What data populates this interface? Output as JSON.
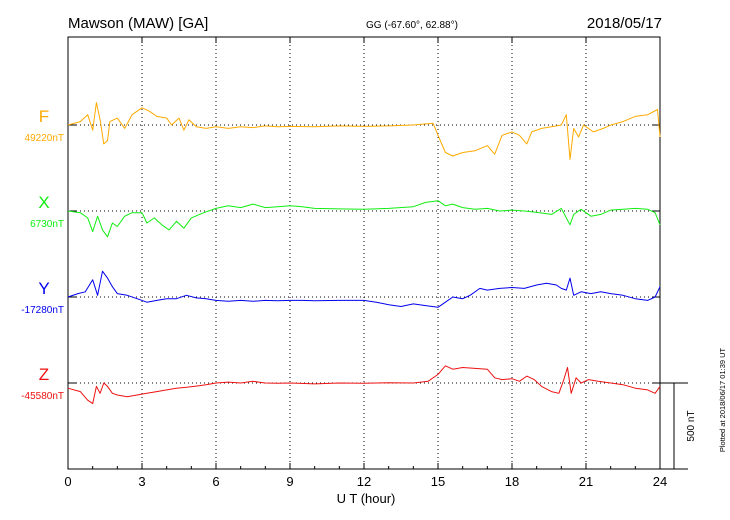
{
  "header": {
    "station": "Mawson (MAW)  [GA]",
    "coords": "GG (-67.60°,  62.88°)",
    "date": "2018/05/17"
  },
  "footer_note": "Plotted at 2018/06/17 01:39 UT",
  "scale_bar_label": "500 nT",
  "chart_data": {
    "type": "line",
    "xlabel": "U T (hour)",
    "xlim": [
      0,
      24
    ],
    "xticks": [
      0,
      3,
      6,
      9,
      12,
      15,
      18,
      21,
      24
    ],
    "grid": true,
    "scale_bar_nT": 500,
    "series": [
      {
        "name": "F",
        "color": "#ffaa00",
        "baseline_label": "49220nT",
        "baseline_nT": 49220,
        "points": [
          [
            0,
            49220
          ],
          [
            0.5,
            49240
          ],
          [
            0.8,
            49280
          ],
          [
            1.0,
            49190
          ],
          [
            1.15,
            49350
          ],
          [
            1.3,
            49250
          ],
          [
            1.45,
            49110
          ],
          [
            1.6,
            49130
          ],
          [
            1.7,
            49240
          ],
          [
            2.0,
            49260
          ],
          [
            2.3,
            49200
          ],
          [
            2.6,
            49280
          ],
          [
            3.0,
            49320
          ],
          [
            3.3,
            49300
          ],
          [
            3.6,
            49270
          ],
          [
            4.0,
            49260
          ],
          [
            4.2,
            49220
          ],
          [
            4.5,
            49260
          ],
          [
            4.7,
            49190
          ],
          [
            4.9,
            49250
          ],
          [
            5.2,
            49210
          ],
          [
            5.6,
            49200
          ],
          [
            6.0,
            49210
          ],
          [
            6.5,
            49200
          ],
          [
            7.0,
            49210
          ],
          [
            7.5,
            49205
          ],
          [
            8.0,
            49215
          ],
          [
            8.5,
            49210
          ],
          [
            9.0,
            49212
          ],
          [
            10,
            49210
          ],
          [
            11,
            49215
          ],
          [
            12,
            49212
          ],
          [
            13,
            49215
          ],
          [
            14,
            49220
          ],
          [
            14.8,
            49230
          ],
          [
            15.0,
            49160
          ],
          [
            15.3,
            49060
          ],
          [
            15.6,
            49040
          ],
          [
            16.0,
            49060
          ],
          [
            16.5,
            49070
          ],
          [
            17.0,
            49100
          ],
          [
            17.3,
            49050
          ],
          [
            17.6,
            49160
          ],
          [
            18.0,
            49180
          ],
          [
            18.3,
            49160
          ],
          [
            18.6,
            49110
          ],
          [
            18.8,
            49180
          ],
          [
            19.2,
            49200
          ],
          [
            19.6,
            49210
          ],
          [
            20.0,
            49220
          ],
          [
            20.2,
            49280
          ],
          [
            20.35,
            49020
          ],
          [
            20.5,
            49200
          ],
          [
            20.7,
            49150
          ],
          [
            20.9,
            49220
          ],
          [
            21.3,
            49180
          ],
          [
            21.7,
            49200
          ],
          [
            22.0,
            49220
          ],
          [
            22.5,
            49240
          ],
          [
            23.0,
            49270
          ],
          [
            23.5,
            49280
          ],
          [
            23.9,
            49310
          ],
          [
            24.0,
            49150
          ]
        ]
      },
      {
        "name": "X",
        "color": "#11ee11",
        "baseline_label": "6730nT",
        "baseline_nT": 6730,
        "points": [
          [
            0,
            6730
          ],
          [
            0.5,
            6720
          ],
          [
            0.8,
            6690
          ],
          [
            1.0,
            6610
          ],
          [
            1.2,
            6700
          ],
          [
            1.4,
            6620
          ],
          [
            1.6,
            6580
          ],
          [
            1.8,
            6660
          ],
          [
            2.0,
            6640
          ],
          [
            2.3,
            6700
          ],
          [
            2.6,
            6720
          ],
          [
            3.0,
            6720
          ],
          [
            3.2,
            6660
          ],
          [
            3.5,
            6690
          ],
          [
            3.8,
            6650
          ],
          [
            4.1,
            6620
          ],
          [
            4.4,
            6670
          ],
          [
            4.7,
            6630
          ],
          [
            5.0,
            6690
          ],
          [
            5.5,
            6720
          ],
          [
            6.0,
            6745
          ],
          [
            6.5,
            6760
          ],
          [
            7.0,
            6750
          ],
          [
            7.5,
            6770
          ],
          [
            8.0,
            6750
          ],
          [
            8.5,
            6755
          ],
          [
            9.0,
            6760
          ],
          [
            9.5,
            6755
          ],
          [
            10,
            6745
          ],
          [
            11,
            6742
          ],
          [
            12,
            6740
          ],
          [
            13,
            6745
          ],
          [
            14,
            6755
          ],
          [
            14.5,
            6780
          ],
          [
            15.0,
            6790
          ],
          [
            15.3,
            6760
          ],
          [
            15.6,
            6770
          ],
          [
            16.0,
            6750
          ],
          [
            16.5,
            6740
          ],
          [
            17.0,
            6745
          ],
          [
            17.5,
            6730
          ],
          [
            18,
            6735
          ],
          [
            18.5,
            6730
          ],
          [
            19.0,
            6722
          ],
          [
            19.6,
            6710
          ],
          [
            20.0,
            6745
          ],
          [
            20.2,
            6690
          ],
          [
            20.35,
            6650
          ],
          [
            20.5,
            6710
          ],
          [
            20.8,
            6740
          ],
          [
            21.2,
            6700
          ],
          [
            21.6,
            6710
          ],
          [
            22.0,
            6735
          ],
          [
            22.5,
            6740
          ],
          [
            23.0,
            6745
          ],
          [
            23.5,
            6740
          ],
          [
            23.8,
            6720
          ],
          [
            24.0,
            6650
          ]
        ]
      },
      {
        "name": "Y",
        "color": "#0000ee",
        "baseline_label": "-17280nT",
        "baseline_nT": -17280,
        "points": [
          [
            0,
            -17280
          ],
          [
            0.4,
            -17260
          ],
          [
            0.7,
            -17250
          ],
          [
            1.0,
            -17180
          ],
          [
            1.2,
            -17270
          ],
          [
            1.4,
            -17130
          ],
          [
            1.6,
            -17170
          ],
          [
            1.8,
            -17220
          ],
          [
            2.0,
            -17260
          ],
          [
            2.4,
            -17270
          ],
          [
            2.8,
            -17290
          ],
          [
            3.2,
            -17310
          ],
          [
            3.6,
            -17300
          ],
          [
            4.0,
            -17290
          ],
          [
            4.4,
            -17290
          ],
          [
            4.8,
            -17270
          ],
          [
            5.2,
            -17285
          ],
          [
            5.6,
            -17290
          ],
          [
            6.0,
            -17300
          ],
          [
            6.5,
            -17305
          ],
          [
            7.0,
            -17300
          ],
          [
            7.5,
            -17305
          ],
          [
            8.0,
            -17300
          ],
          [
            8.5,
            -17302
          ],
          [
            9.0,
            -17300
          ],
          [
            9.5,
            -17300
          ],
          [
            10,
            -17302
          ],
          [
            11,
            -17300
          ],
          [
            11.5,
            -17300
          ],
          [
            12,
            -17300
          ],
          [
            12.5,
            -17310
          ],
          [
            13,
            -17325
          ],
          [
            13.5,
            -17335
          ],
          [
            14,
            -17320
          ],
          [
            14.5,
            -17330
          ],
          [
            15.0,
            -17340
          ],
          [
            15.3,
            -17310
          ],
          [
            15.6,
            -17280
          ],
          [
            16.0,
            -17290
          ],
          [
            16.3,
            -17270
          ],
          [
            16.7,
            -17230
          ],
          [
            17.0,
            -17240
          ],
          [
            17.5,
            -17230
          ],
          [
            18,
            -17225
          ],
          [
            18.5,
            -17230
          ],
          [
            19.0,
            -17210
          ],
          [
            19.4,
            -17200
          ],
          [
            19.8,
            -17210
          ],
          [
            20.0,
            -17230
          ],
          [
            20.2,
            -17240
          ],
          [
            20.35,
            -17170
          ],
          [
            20.5,
            -17270
          ],
          [
            20.8,
            -17250
          ],
          [
            21.2,
            -17260
          ],
          [
            21.6,
            -17250
          ],
          [
            22.0,
            -17260
          ],
          [
            22.5,
            -17270
          ],
          [
            23.0,
            -17290
          ],
          [
            23.5,
            -17300
          ],
          [
            23.8,
            -17280
          ],
          [
            24.0,
            -17220
          ]
        ]
      },
      {
        "name": "Z",
        "color": "#ee1111",
        "baseline_label": "-45580nT",
        "baseline_nT": -45580,
        "points": [
          [
            0,
            -45610
          ],
          [
            0.5,
            -45630
          ],
          [
            0.8,
            -45680
          ],
          [
            1.0,
            -45700
          ],
          [
            1.15,
            -45600
          ],
          [
            1.3,
            -45640
          ],
          [
            1.45,
            -45580
          ],
          [
            1.6,
            -45600
          ],
          [
            1.8,
            -45640
          ],
          [
            2.0,
            -45650
          ],
          [
            2.4,
            -45660
          ],
          [
            2.8,
            -45650
          ],
          [
            3.2,
            -45640
          ],
          [
            3.6,
            -45630
          ],
          [
            4.0,
            -45620
          ],
          [
            4.4,
            -45610
          ],
          [
            4.8,
            -45605
          ],
          [
            5.2,
            -45598
          ],
          [
            5.6,
            -45590
          ],
          [
            6.0,
            -45580
          ],
          [
            6.5,
            -45575
          ],
          [
            7.0,
            -45580
          ],
          [
            7.5,
            -45570
          ],
          [
            8.0,
            -45580
          ],
          [
            8.5,
            -45582
          ],
          [
            9.0,
            -45580
          ],
          [
            10,
            -45585
          ],
          [
            11,
            -45580
          ],
          [
            12,
            -45582
          ],
          [
            13,
            -45578
          ],
          [
            14,
            -45580
          ],
          [
            14.6,
            -45570
          ],
          [
            15.0,
            -45530
          ],
          [
            15.3,
            -45480
          ],
          [
            15.6,
            -45500
          ],
          [
            16.0,
            -45490
          ],
          [
            16.5,
            -45495
          ],
          [
            17.0,
            -45500
          ],
          [
            17.3,
            -45550
          ],
          [
            17.6,
            -45560
          ],
          [
            18.0,
            -45555
          ],
          [
            18.3,
            -45570
          ],
          [
            18.6,
            -45540
          ],
          [
            18.9,
            -45560
          ],
          [
            19.2,
            -45600
          ],
          [
            19.6,
            -45630
          ],
          [
            19.9,
            -45640
          ],
          [
            20.1,
            -45560
          ],
          [
            20.25,
            -45490
          ],
          [
            20.4,
            -45640
          ],
          [
            20.6,
            -45550
          ],
          [
            20.8,
            -45580
          ],
          [
            21.1,
            -45560
          ],
          [
            21.5,
            -45570
          ],
          [
            22.0,
            -45580
          ],
          [
            22.5,
            -45590
          ],
          [
            23.0,
            -45610
          ],
          [
            23.5,
            -45620
          ],
          [
            23.8,
            -45640
          ],
          [
            24.0,
            -45600
          ]
        ]
      }
    ]
  }
}
